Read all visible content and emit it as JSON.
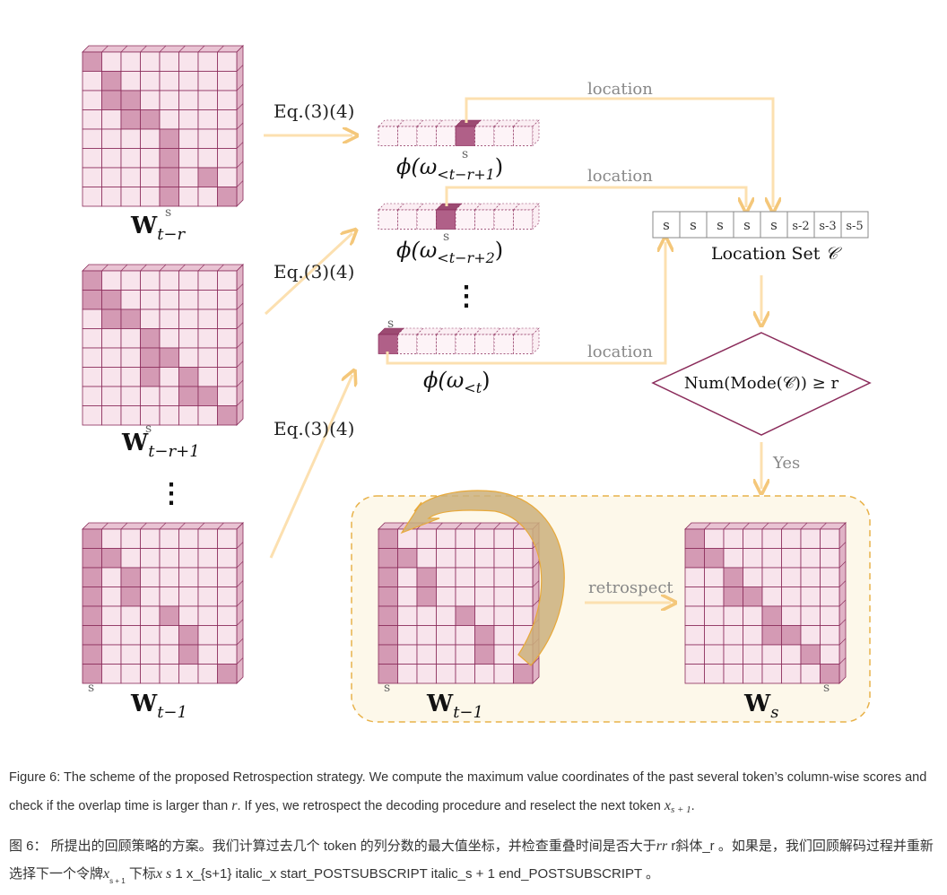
{
  "labels": {
    "eq": "Eq.(3)(4)",
    "location": "location",
    "yes": "Yes",
    "retrospect": "retrospect",
    "s": "s",
    "vdots": "⋮"
  },
  "matrices": {
    "w1": {
      "label_base": "W",
      "label_sub": "t−r",
      "diag": [
        [
          0,
          0
        ],
        [
          1,
          1
        ],
        [
          2,
          1
        ],
        [
          2,
          2
        ],
        [
          3,
          2
        ],
        [
          3,
          3
        ],
        [
          4,
          4
        ],
        [
          5,
          4
        ],
        [
          6,
          4
        ],
        [
          6,
          6
        ],
        [
          7,
          4
        ],
        [
          7,
          7
        ]
      ]
    },
    "w2": {
      "label_base": "W",
      "label_sub": "t−r+1",
      "diag": [
        [
          0,
          0
        ],
        [
          1,
          0
        ],
        [
          1,
          1
        ],
        [
          2,
          1
        ],
        [
          2,
          2
        ],
        [
          3,
          3
        ],
        [
          4,
          3
        ],
        [
          4,
          4
        ],
        [
          5,
          3
        ],
        [
          5,
          5
        ],
        [
          6,
          5
        ],
        [
          6,
          6
        ],
        [
          7,
          7
        ]
      ]
    },
    "w3": {
      "label_base": "W",
      "label_sub": "t−1",
      "diag": [
        [
          0,
          0
        ],
        [
          1,
          0
        ],
        [
          1,
          1
        ],
        [
          2,
          0
        ],
        [
          2,
          2
        ],
        [
          3,
          0
        ],
        [
          3,
          2
        ],
        [
          4,
          0
        ],
        [
          4,
          4
        ],
        [
          5,
          0
        ],
        [
          5,
          5
        ],
        [
          6,
          0
        ],
        [
          6,
          5
        ],
        [
          7,
          0
        ],
        [
          7,
          7
        ]
      ]
    },
    "w4": {
      "label_base": "W",
      "label_sub": "t−1",
      "diag": [
        [
          0,
          0
        ],
        [
          1,
          0
        ],
        [
          1,
          1
        ],
        [
          2,
          0
        ],
        [
          2,
          2
        ],
        [
          3,
          0
        ],
        [
          3,
          2
        ],
        [
          4,
          0
        ],
        [
          4,
          4
        ],
        [
          5,
          0
        ],
        [
          5,
          5
        ],
        [
          6,
          0
        ],
        [
          6,
          5
        ],
        [
          7,
          0
        ],
        [
          7,
          7
        ]
      ]
    },
    "w5": {
      "label_base": "W",
      "label_sub": "s",
      "diag": [
        [
          0,
          0
        ],
        [
          1,
          0
        ],
        [
          1,
          1
        ],
        [
          2,
          2
        ],
        [
          3,
          2
        ],
        [
          3,
          3
        ],
        [
          4,
          4
        ],
        [
          5,
          4
        ],
        [
          5,
          5
        ],
        [
          6,
          6
        ],
        [
          7,
          7
        ]
      ]
    }
  },
  "vectors": {
    "v1": {
      "label": "ϕ(ω",
      "sub": "<t−r+1",
      "close": ")",
      "active": 4
    },
    "v2": {
      "label": "ϕ(ω",
      "sub": "<t−r+2",
      "close": ")",
      "active": 3
    },
    "v3": {
      "label": "ϕ(ω",
      "sub": "<t",
      "close": ")",
      "active": 0
    }
  },
  "location_set": {
    "cells": [
      "s",
      "s",
      "s",
      "s",
      "s",
      "s-2",
      "s-3",
      "s-5"
    ],
    "label": "Location Set",
    "symbol": "𝒞"
  },
  "decision": {
    "text": "Num(Mode(𝒞)) ≥ r"
  },
  "colors": {
    "arrow": "#fce0b0",
    "arrow_edge": "#f4c77a",
    "cell_light": "#f8e4ec",
    "cell_mid": "#d49ab4",
    "cell_dark": "#b06088",
    "edge": "#8a2b5a",
    "panel_fill": "#fdf8ea",
    "panel_border": "#e8b24a",
    "curved_arrow": "#cbb07c"
  },
  "captions": {
    "en_1": "Figure 6: The scheme of the proposed Retrospection strategy. We compute the maximum value coordinates of the past several token’s column-wise scores and check if the overlap time is larger than",
    "en_r": "r",
    "en_2": ". If yes, we retrospect the decoding procedure and reselect the next token",
    "en_x": "x",
    "en_xsub": "s + 1",
    "en_3": ".",
    "zh_1": "图 6： 所提出的回顾策略的方案。我们计算过去几个 token 的列分数的最大值坐标，并检查重叠时间是否大于",
    "zh_rr": "rr",
    "zh_2": " r斜体_r 。如果是，我们回顾解码过程并重新选择下一个令牌",
    "zh_x": "x",
    "zh_xsub": "s + 1",
    "zh_3": "下标",
    "zh_xs": "x s",
    "zh_4": " 1 x_{s+1} italic_x start_POSTSUBSCRIPT italic_s + 1 end_POSTSUBSCRIPT 。"
  }
}
